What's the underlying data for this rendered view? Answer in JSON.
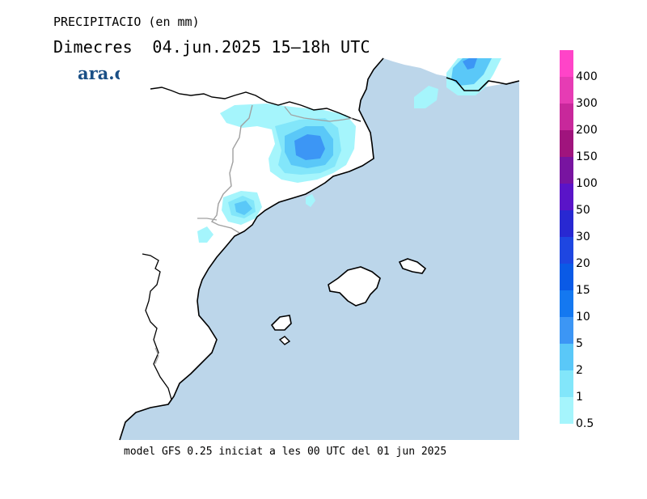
{
  "header": {
    "title": "PRECIPITACIO (en mm)",
    "day": "Dimecres",
    "date": "04.jun.2025",
    "period": "15–18h UTC"
  },
  "brand": {
    "logo_text": "ara.cat",
    "color": "#1a4f86"
  },
  "footer": {
    "note": "model GFS 0.25 iniciat a les 00 UTC del 01 jun 2025"
  },
  "map": {
    "sea_color": "#bcd6ea",
    "land_color": "#ffffff",
    "coast_color": "#000000",
    "border_color": "#a0a0a0"
  },
  "legend": {
    "items": [
      {
        "label": "400",
        "color": "#ff44c8"
      },
      {
        "label": "300",
        "color": "#e63cb4"
      },
      {
        "label": "200",
        "color": "#c8289b"
      },
      {
        "label": "150",
        "color": "#a0147d"
      },
      {
        "label": "100",
        "color": "#7814a0"
      },
      {
        "label": "50",
        "color": "#5a14c8"
      },
      {
        "label": "30",
        "color": "#2828d2"
      },
      {
        "label": "20",
        "color": "#1e46e1"
      },
      {
        "label": "15",
        "color": "#0a5ae6"
      },
      {
        "label": "10",
        "color": "#1478f0"
      },
      {
        "label": "5",
        "color": "#3c96f5"
      },
      {
        "label": "2",
        "color": "#5ac8f8"
      },
      {
        "label": "1",
        "color": "#82e6fa"
      },
      {
        "label": "0.5",
        "color": "#a5f5fc"
      }
    ]
  }
}
